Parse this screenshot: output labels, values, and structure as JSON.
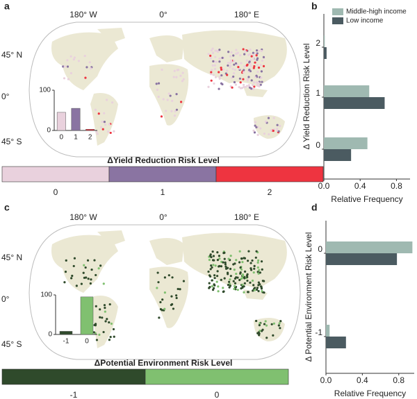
{
  "panels": [
    "a",
    "b",
    "c",
    "d"
  ],
  "maps": [
    {
      "lon_labels": [
        "180° W",
        "0°",
        "180° E"
      ],
      "lat_labels": [
        "45° N",
        "0°",
        "45° S"
      ],
      "legend_title": "ΔYield Reduction Risk Level",
      "legend": [
        {
          "label": "0",
          "color": "#e9d1dd"
        },
        {
          "label": "1",
          "color": "#8a74a2"
        },
        {
          "label": "2",
          "color": "#ee3440"
        }
      ]
    },
    {
      "lon_labels": [
        "180° W",
        "0°",
        "180° E"
      ],
      "lat_labels": [
        "45° N",
        "0°",
        "45° S"
      ],
      "legend_title": "ΔPotential Environment Risk Level",
      "legend": [
        {
          "label": "-1",
          "color": "#2f4a2b"
        },
        {
          "label": "0",
          "color": "#80c070"
        }
      ]
    }
  ],
  "chart_data": [
    {
      "type": "bar",
      "categories": [
        "0",
        "1",
        "2"
      ],
      "values": [
        45,
        55,
        3
      ],
      "colors": [
        "#e9d1dd",
        "#8a74a2",
        "#ee3440"
      ],
      "ylim": [
        0,
        100
      ],
      "yticks": [
        0,
        100
      ]
    },
    {
      "type": "hbar",
      "ylabel": "Δ Yield Reduction Risk Level",
      "xlabel": "Relative Frequency",
      "categories": [
        "0",
        "1",
        "2"
      ],
      "series": [
        {
          "name": "Middle-high income",
          "color": "#9fb9b1",
          "values": [
            0.48,
            0.5,
            0.01
          ]
        },
        {
          "name": "Low income",
          "color": "#4b5b61",
          "values": [
            0.3,
            0.67,
            0.03
          ]
        }
      ],
      "xlim": [
        0,
        0.95
      ],
      "xticks": [
        {
          "value": 0,
          "label": "0.0"
        },
        0.4,
        0.8
      ],
      "legend": "upper right"
    },
    {
      "type": "bar",
      "categories": [
        "-1",
        "0"
      ],
      "values": [
        8,
        95
      ],
      "colors": [
        "#2f4a2b",
        "#80c070"
      ],
      "ylim": [
        0,
        100
      ],
      "yticks": [
        0,
        100
      ]
    },
    {
      "type": "hbar",
      "ylabel": "Δ Potential Environment Risk Level",
      "xlabel": "Relative Frequency",
      "categories": [
        "-1",
        "0"
      ],
      "series": [
        {
          "color": "#9fb9b1",
          "values": [
            0.04,
            0.95
          ]
        },
        {
          "color": "#4b5b61",
          "values": [
            0.22,
            0.78
          ]
        }
      ],
      "xlim": [
        0,
        0.97
      ],
      "xticks": [
        {
          "value": 0,
          "label": "0.0"
        },
        0.4,
        0.8
      ]
    }
  ]
}
